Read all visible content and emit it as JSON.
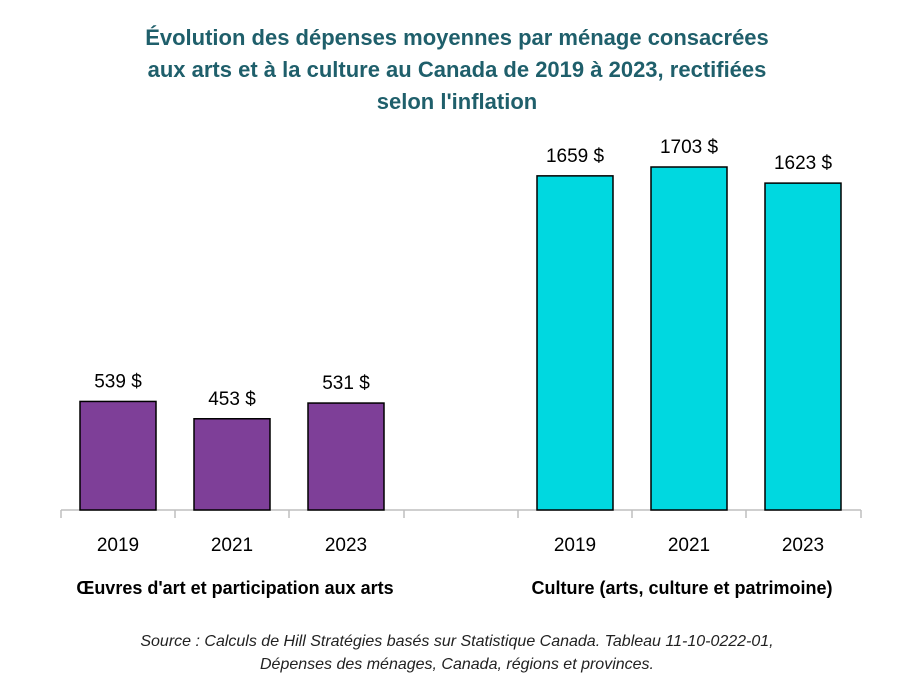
{
  "title_lines": [
    "Évolution des dépenses moyennes par ménage consacrées",
    "aux arts et à la culture au Canada de 2019 à 2023, rectifiées",
    "selon l'inflation"
  ],
  "source_lines": [
    "Source : Calculs de Hill Stratégies basés sur Statistique Canada. Tableau 11-10-0222-01,",
    "Dépenses des ménages, Canada, régions et provinces."
  ],
  "chart_data": {
    "type": "bar",
    "title": "Évolution des dépenses moyennes par ménage consacrées aux arts et à la culture au Canada de 2019 à 2023, rectifiées selon l'inflation",
    "groups": [
      {
        "name": "Œuvres d'art et participation aux arts",
        "color": "#7e3f98",
        "categories": [
          "2019",
          "2021",
          "2023"
        ],
        "values": [
          539,
          453,
          531
        ],
        "value_labels": [
          "539 $",
          "453 $",
          "531 $"
        ]
      },
      {
        "name": "Culture (arts, culture et patrimoine)",
        "color": "#00d8e0",
        "categories": [
          "2019",
          "2021",
          "2023"
        ],
        "values": [
          1659,
          1703,
          1623
        ],
        "value_labels": [
          "1659 $",
          "1703 $",
          "1623 $"
        ]
      }
    ],
    "ylim": [
      0,
      1750
    ],
    "grid": false,
    "legend": "none"
  }
}
